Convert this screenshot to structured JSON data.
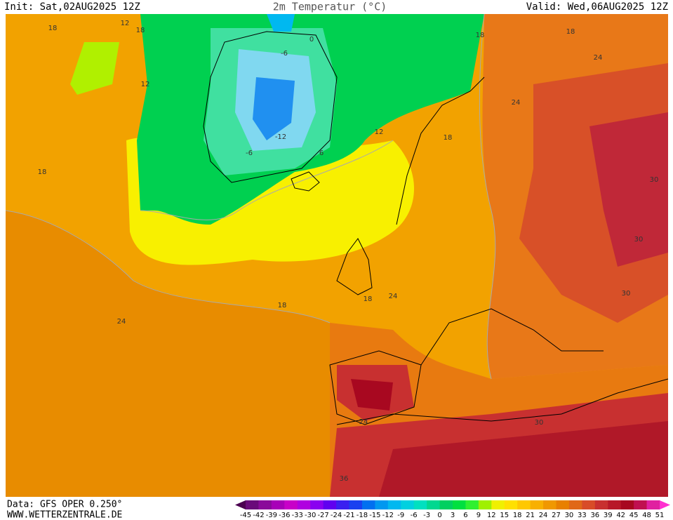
{
  "header": {
    "init": "Init: Sat,02AUG2025 12Z",
    "title": "2m Temperatur (°C)",
    "valid": "Valid: Wed,06AUG2025 12Z"
  },
  "footer": {
    "data": "Data: GFS OPER 0.250°",
    "site": "WWW.WETTERZENTRALE.DE"
  },
  "contour_labels": [
    "18",
    "12",
    "18",
    "12",
    "-6",
    "0",
    "-12",
    "-6",
    "6",
    "12",
    "18",
    "18",
    "18",
    "18",
    "24",
    "24",
    "30",
    "30",
    "30",
    "18",
    "24",
    "18",
    "24",
    "24",
    "30",
    "36"
  ],
  "colorbar": {
    "labels": [
      -45,
      -42,
      -39,
      -36,
      -33,
      -30,
      -27,
      -24,
      -21,
      -18,
      -15,
      -12,
      -9,
      -6,
      -3,
      0,
      3,
      6,
      9,
      12,
      15,
      18,
      21,
      24,
      27,
      30,
      33,
      36,
      39,
      42,
      45,
      48,
      51
    ],
    "colors": [
      "#4b0050",
      "#6a0a7a",
      "#8a0a9a",
      "#a800b8",
      "#c800c8",
      "#b000e0",
      "#8a00f0",
      "#6000f0",
      "#3a20f0",
      "#1a40f0",
      "#0070f0",
      "#0098f0",
      "#00b8f0",
      "#00d0e0",
      "#00e0c0",
      "#00d890",
      "#00d060",
      "#00e040",
      "#30f030",
      "#a0f000",
      "#f0f000",
      "#ffe000",
      "#ffc800",
      "#f8b000",
      "#f09800",
      "#e88000",
      "#e06818",
      "#d84c28",
      "#c83030",
      "#b81828",
      "#a80820",
      "#c01050",
      "#e020a0",
      "#ff30d0"
    ]
  }
}
